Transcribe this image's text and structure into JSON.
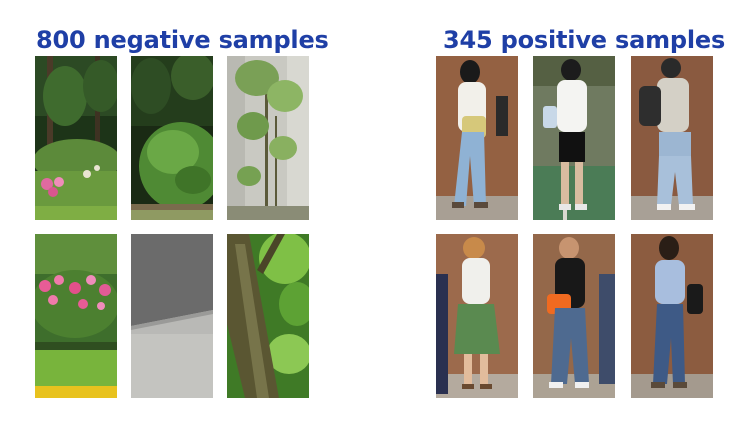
{
  "negative": {
    "heading": "800 negative samples",
    "tiles": [
      {
        "subject": "shrubs-and-pink-flowers-icon"
      },
      {
        "subject": "round-bush-icon"
      },
      {
        "subject": "sapling-by-wall-icon"
      },
      {
        "subject": "pink-flower-bed-icon"
      },
      {
        "subject": "pavement-icon"
      },
      {
        "subject": "tree-trunk-icon"
      }
    ]
  },
  "positive": {
    "heading": "345 positive samples",
    "tiles": [
      {
        "subject": "pedestrian-with-handbag-icon"
      },
      {
        "subject": "pedestrian-in-white-top-icon"
      },
      {
        "subject": "pedestrian-with-backpack-icon"
      },
      {
        "subject": "pedestrian-in-green-skirt-icon"
      },
      {
        "subject": "pedestrian-in-black-shirt-icon"
      },
      {
        "subject": "pedestrian-in-denim-jacket-icon"
      }
    ]
  },
  "colors": {
    "heading": "#1f3fa6"
  }
}
